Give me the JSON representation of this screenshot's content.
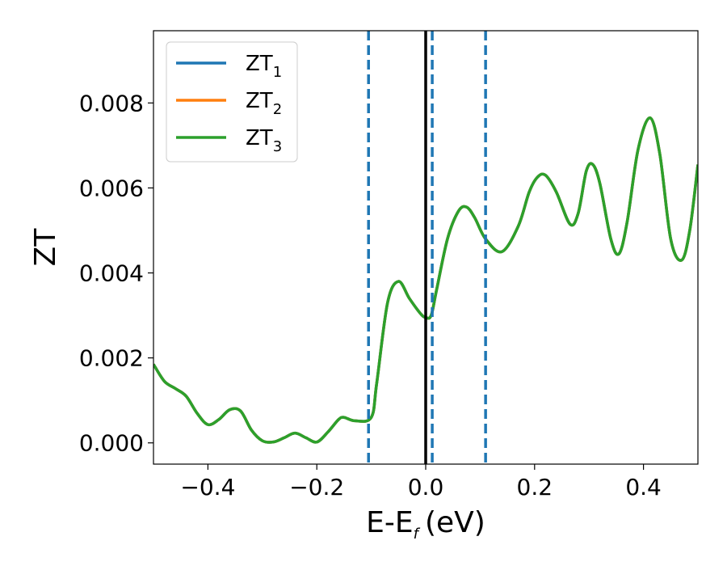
{
  "chart_data": {
    "type": "line",
    "xlabel": "E-E",
    "xlabel_sub": "f",
    "xlabel_unit": "(eV)",
    "ylabel": "ZT",
    "xlim": [
      -0.5,
      0.5
    ],
    "ylim": [
      -0.0005,
      0.0097
    ],
    "xticks": [
      -0.4,
      -0.2,
      0.0,
      0.2,
      0.4
    ],
    "xtick_labels": [
      "−0.4",
      "−0.2",
      "0.0",
      "0.2",
      "0.4"
    ],
    "yticks": [
      0.0,
      0.002,
      0.004,
      0.006,
      0.008
    ],
    "ytick_labels": [
      "0.000",
      "0.002",
      "0.004",
      "0.006",
      "0.008"
    ],
    "grid": false,
    "legend_position": "upper-left",
    "x": [
      -0.5,
      -0.48,
      -0.46,
      -0.44,
      -0.42,
      -0.4,
      -0.38,
      -0.36,
      -0.34,
      -0.32,
      -0.3,
      -0.28,
      -0.26,
      -0.24,
      -0.22,
      -0.2,
      -0.18,
      -0.16,
      -0.15,
      -0.13,
      -0.1,
      -0.09,
      -0.07,
      -0.05,
      -0.03,
      -0.01,
      0.0,
      0.01,
      0.02,
      0.04,
      0.06,
      0.075,
      0.09,
      0.11,
      0.14,
      0.17,
      0.19,
      0.205,
      0.22,
      0.24,
      0.265,
      0.28,
      0.295,
      0.307,
      0.32,
      0.34,
      0.355,
      0.37,
      0.39,
      0.412,
      0.43,
      0.45,
      0.47,
      0.485,
      0.5
    ],
    "series": [
      {
        "name": "ZT",
        "name_sub": "1",
        "color": "#1f77b4",
        "values": [
          0.00185,
          0.00145,
          0.00128,
          0.0011,
          0.0007,
          0.00043,
          0.00055,
          0.00078,
          0.00075,
          0.0003,
          5e-05,
          2e-05,
          0.00012,
          0.00023,
          0.00012,
          2e-05,
          0.00025,
          0.00055,
          0.0006,
          0.00052,
          0.0006,
          0.0014,
          0.0033,
          0.0038,
          0.0034,
          0.00305,
          0.00295,
          0.003,
          0.0036,
          0.0048,
          0.00545,
          0.00555,
          0.0053,
          0.0048,
          0.0045,
          0.0051,
          0.0059,
          0.00625,
          0.0063,
          0.0059,
          0.00515,
          0.0054,
          0.0064,
          0.00655,
          0.0061,
          0.0048,
          0.00445,
          0.0052,
          0.0069,
          0.00765,
          0.0068,
          0.0048,
          0.0043,
          0.005,
          0.00655
        ]
      },
      {
        "name": "ZT",
        "name_sub": "2",
        "color": "#ff7f0e",
        "values": [
          0.00185,
          0.00145,
          0.00128,
          0.0011,
          0.0007,
          0.00043,
          0.00055,
          0.00078,
          0.00075,
          0.0003,
          5e-05,
          2e-05,
          0.00012,
          0.00023,
          0.00012,
          2e-05,
          0.00025,
          0.00055,
          0.0006,
          0.00052,
          0.0006,
          0.0014,
          0.0033,
          0.0038,
          0.0034,
          0.00305,
          0.00295,
          0.003,
          0.0036,
          0.0048,
          0.00545,
          0.00555,
          0.0053,
          0.0048,
          0.0045,
          0.0051,
          0.0059,
          0.00625,
          0.0063,
          0.0059,
          0.00515,
          0.0054,
          0.0064,
          0.00655,
          0.0061,
          0.0048,
          0.00445,
          0.0052,
          0.0069,
          0.00765,
          0.0068,
          0.0048,
          0.0043,
          0.005,
          0.00655
        ]
      },
      {
        "name": "ZT",
        "name_sub": "3",
        "color": "#2ca02c",
        "values": [
          0.00185,
          0.00145,
          0.00128,
          0.0011,
          0.0007,
          0.00043,
          0.00055,
          0.00078,
          0.00075,
          0.0003,
          5e-05,
          2e-05,
          0.00012,
          0.00023,
          0.00012,
          2e-05,
          0.00025,
          0.00055,
          0.0006,
          0.00052,
          0.0006,
          0.0014,
          0.0033,
          0.0038,
          0.0034,
          0.00305,
          0.00295,
          0.003,
          0.0036,
          0.0048,
          0.00545,
          0.00555,
          0.0053,
          0.0048,
          0.0045,
          0.0051,
          0.0059,
          0.00625,
          0.0063,
          0.0059,
          0.00515,
          0.0054,
          0.0064,
          0.00655,
          0.0061,
          0.0048,
          0.00445,
          0.0052,
          0.0069,
          0.00765,
          0.0068,
          0.0048,
          0.0043,
          0.005,
          0.00655
        ]
      }
    ],
    "vlines": [
      {
        "x": -0.105,
        "style": "dashed",
        "color": "#1f77b4"
      },
      {
        "x": 0.0,
        "style": "solid",
        "color": "#000000"
      },
      {
        "x": 0.012,
        "style": "dashed",
        "color": "#1f77b4"
      },
      {
        "x": 0.11,
        "style": "dashed",
        "color": "#1f77b4"
      }
    ]
  }
}
